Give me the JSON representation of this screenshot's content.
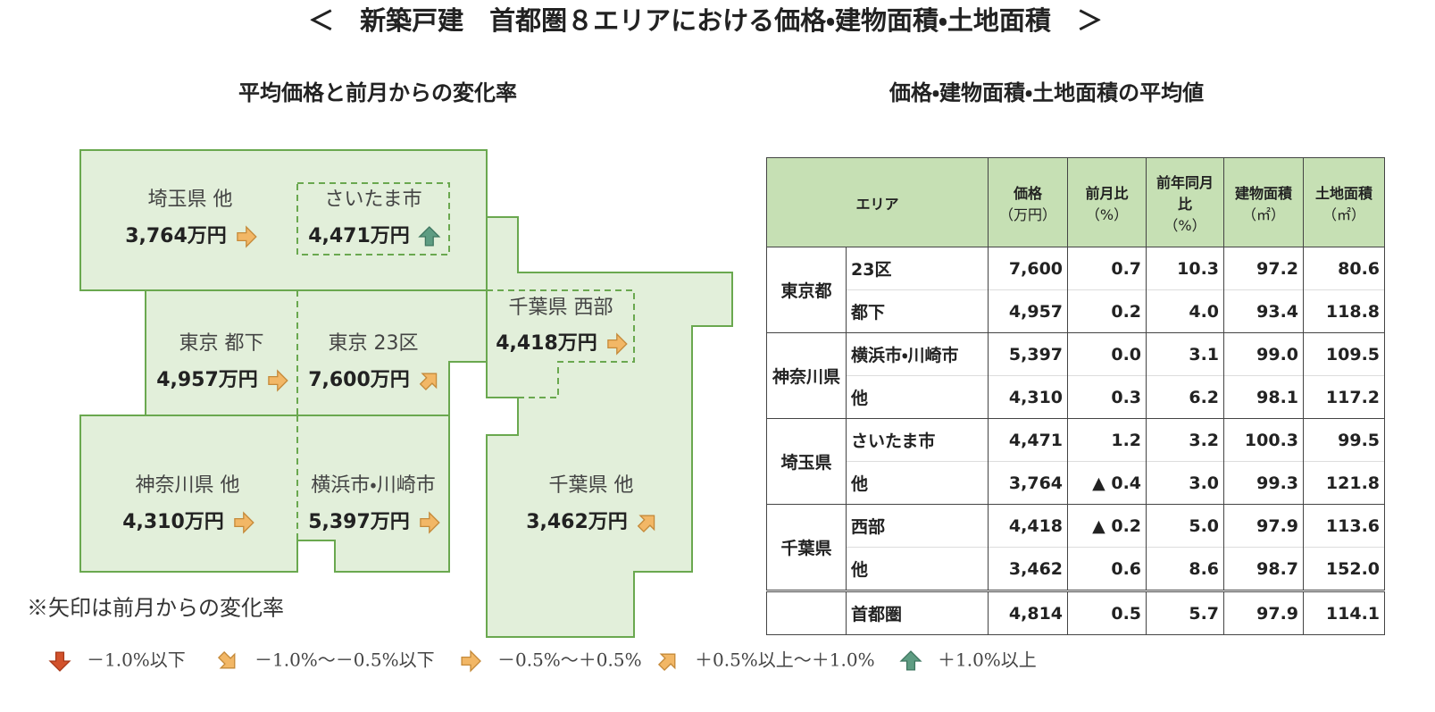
{
  "title": "＜　新築戸建　首都圏８エリアにおける価格・建物面積・土地面積　＞",
  "map": {
    "title": "平均価格と前月からの変化率",
    "regions": [
      {
        "name": "埼玉県 他",
        "price": "3,764万円",
        "arrow": "right"
      },
      {
        "name": "さいたま市",
        "price": "4,471万円",
        "arrow": "up"
      },
      {
        "name": "東京 都下",
        "price": "4,957万円",
        "arrow": "right"
      },
      {
        "name": "東京 23区",
        "price": "7,600万円",
        "arrow": "up-right"
      },
      {
        "name": "千葉県 西部",
        "price": "4,418万円",
        "arrow": "right"
      },
      {
        "name": "神奈川県 他",
        "price": "4,310万円",
        "arrow": "right"
      },
      {
        "name": "横浜市・川崎市",
        "price": "5,397万円",
        "arrow": "right"
      },
      {
        "name": "千葉県 他",
        "price": "3,462万円",
        "arrow": "up-right"
      }
    ],
    "note": "※矢印は前月からの変化率",
    "legend": [
      {
        "label": "－1.0%以下",
        "arrow": "down"
      },
      {
        "label": "－1.0%～－0.5%以下",
        "arrow": "down-right"
      },
      {
        "label": "－0.5%～＋0.5%",
        "arrow": "right"
      },
      {
        "label": "＋0.5%以上～＋1.0%",
        "arrow": "up-right"
      },
      {
        "label": "＋1.0%以上",
        "arrow": "up"
      }
    ]
  },
  "table": {
    "title": "価格・建物面積・土地面積の平均値",
    "area_header": "エリア",
    "columns": [
      {
        "name": "価格",
        "unit": "（万円）"
      },
      {
        "name": "前月比",
        "unit": "（%）"
      },
      {
        "name": "前年同月比",
        "unit": "（%）"
      },
      {
        "name": "建物面積",
        "unit": "（㎡）"
      },
      {
        "name": "土地面積",
        "unit": "（㎡）"
      }
    ],
    "groups": [
      {
        "name": "東京都",
        "rows": [
          {
            "area": "23区",
            "values": [
              "7,600",
              "0.7",
              "10.3",
              "97.2",
              "80.6"
            ]
          },
          {
            "area": "都下",
            "values": [
              "4,957",
              "0.2",
              "4.0",
              "93.4",
              "118.8"
            ]
          }
        ]
      },
      {
        "name": "神奈川県",
        "rows": [
          {
            "area": "横浜市・川崎市",
            "values": [
              "5,397",
              "0.0",
              "3.1",
              "99.0",
              "109.5"
            ]
          },
          {
            "area": "他",
            "values": [
              "4,310",
              "0.3",
              "6.2",
              "98.1",
              "117.2"
            ]
          }
        ]
      },
      {
        "name": "埼玉県",
        "rows": [
          {
            "area": "さいたま市",
            "values": [
              "4,471",
              "1.2",
              "3.2",
              "100.3",
              "99.5"
            ]
          },
          {
            "area": "他",
            "values": [
              "3,764",
              "▲ 0.4",
              "3.0",
              "99.3",
              "121.8"
            ]
          }
        ]
      },
      {
        "name": "千葉県",
        "rows": [
          {
            "area": "西部",
            "values": [
              "4,418",
              "▲ 0.2",
              "5.0",
              "97.9",
              "113.6"
            ]
          },
          {
            "area": "他",
            "values": [
              "3,462",
              "0.6",
              "8.6",
              "98.7",
              "152.0"
            ]
          }
        ]
      }
    ],
    "total": {
      "area": "首都圏",
      "values": [
        "4,814",
        "0.5",
        "5.7",
        "97.9",
        "114.1"
      ]
    }
  }
}
